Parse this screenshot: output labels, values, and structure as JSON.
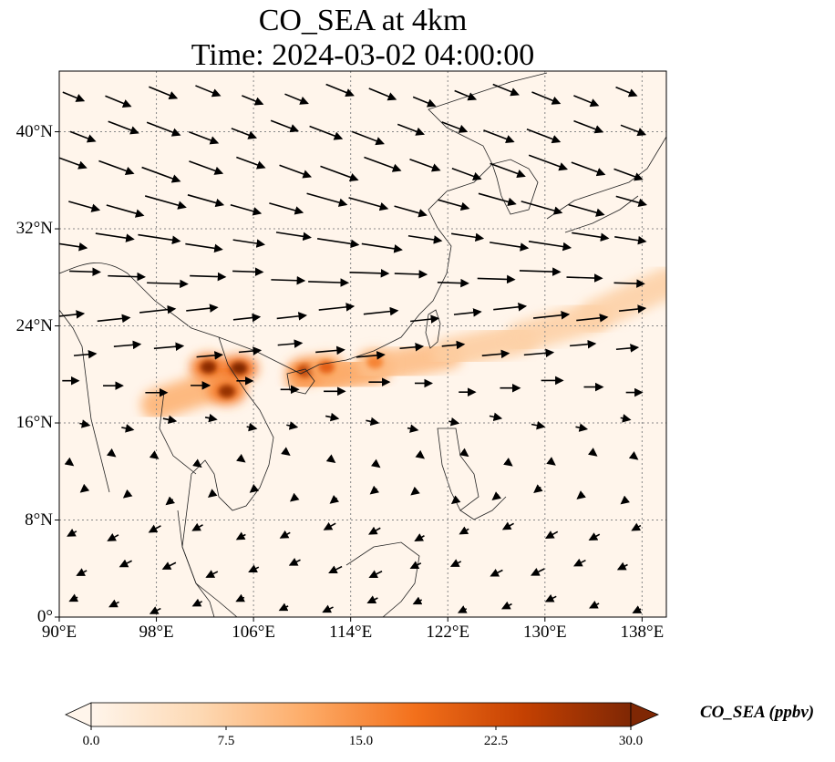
{
  "title_line1": "CO_SEA at 4km",
  "title_line2": "Time: 2024-03-02 04:00:00",
  "map": {
    "extent": {
      "lon_min": 90,
      "lon_max": 140,
      "lat_min": 0,
      "lat_max": 45
    },
    "lon_ticks": [
      {
        "value": 90,
        "label": "90°E"
      },
      {
        "value": 98,
        "label": "98°E"
      },
      {
        "value": 106,
        "label": "106°E"
      },
      {
        "value": 114,
        "label": "114°E"
      },
      {
        "value": 122,
        "label": "122°E"
      },
      {
        "value": 130,
        "label": "130°E"
      },
      {
        "value": 138,
        "label": "138°E"
      }
    ],
    "lat_ticks": [
      {
        "value": 0,
        "label": "0°"
      },
      {
        "value": 8,
        "label": "8°N"
      },
      {
        "value": 16,
        "label": "16°N"
      },
      {
        "value": 24,
        "label": "24°N"
      },
      {
        "value": 32,
        "label": "32°N"
      },
      {
        "value": 40,
        "label": "40°N"
      }
    ],
    "gridlines": "dotted",
    "background_color": "#fff5eb",
    "plume_hotspots": [
      {
        "lon": 102.3,
        "lat": 20.6,
        "value": 29
      },
      {
        "lon": 104.8,
        "lat": 20.5,
        "value": 30
      },
      {
        "lon": 103.8,
        "lat": 18.6,
        "value": 28
      },
      {
        "lon": 110.3,
        "lat": 20.3,
        "value": 25
      },
      {
        "lon": 112.0,
        "lat": 20.6,
        "value": 20
      },
      {
        "lon": 116.0,
        "lat": 21.0,
        "value": 16
      }
    ],
    "plume_band": [
      {
        "lon": 98.0,
        "lat": 17.5,
        "value": 8
      },
      {
        "lon": 104.0,
        "lat": 19.5,
        "value": 14
      },
      {
        "lon": 110.0,
        "lat": 19.5,
        "value": 14
      },
      {
        "lon": 116.0,
        "lat": 20.5,
        "value": 11
      },
      {
        "lon": 122.0,
        "lat": 21.7,
        "value": 8
      },
      {
        "lon": 128.0,
        "lat": 23.0,
        "value": 7
      },
      {
        "lon": 134.0,
        "lat": 24.8,
        "value": 7
      },
      {
        "lon": 140.0,
        "lat": 27.5,
        "value": 7
      }
    ],
    "wind_rows": [
      {
        "lat": 43,
        "u": 2.2,
        "v": -0.9
      },
      {
        "lat": 40,
        "u": 2.6,
        "v": -1.0
      },
      {
        "lat": 37,
        "u": 3.0,
        "v": -1.1
      },
      {
        "lat": 34,
        "u": 3.2,
        "v": -0.9
      },
      {
        "lat": 31,
        "u": 3.3,
        "v": -0.5
      },
      {
        "lat": 28,
        "u": 3.2,
        "v": -0.1
      },
      {
        "lat": 25,
        "u": 2.8,
        "v": 0.3
      },
      {
        "lat": 22,
        "u": 2.3,
        "v": 0.2
      },
      {
        "lat": 19,
        "u": 1.7,
        "v": 0.0
      },
      {
        "lat": 16,
        "u": 1.0,
        "v": -0.2
      },
      {
        "lat": 13,
        "u": 0.4,
        "v": -0.3
      },
      {
        "lat": 10,
        "u": -0.5,
        "v": -0.4
      },
      {
        "lat": 7,
        "u": -0.9,
        "v": -0.5
      },
      {
        "lat": 4,
        "u": -1.0,
        "v": -0.5
      },
      {
        "lat": 1,
        "u": -0.8,
        "v": -0.4
      }
    ]
  },
  "colorbar": {
    "label": "CO_SEA (ppbv)",
    "min": 0.0,
    "max": 30.0,
    "extend": "both",
    "ticks": [
      {
        "value": 0.0,
        "label": "0.0"
      },
      {
        "value": 7.5,
        "label": "7.5"
      },
      {
        "value": 15.0,
        "label": "15.0"
      },
      {
        "value": 22.5,
        "label": "22.5"
      },
      {
        "value": 30.0,
        "label": "30.0"
      }
    ],
    "colors": [
      "#fff5eb",
      "#fdd9b4",
      "#fdab67",
      "#f3701b",
      "#c54102",
      "#7f2704"
    ]
  }
}
